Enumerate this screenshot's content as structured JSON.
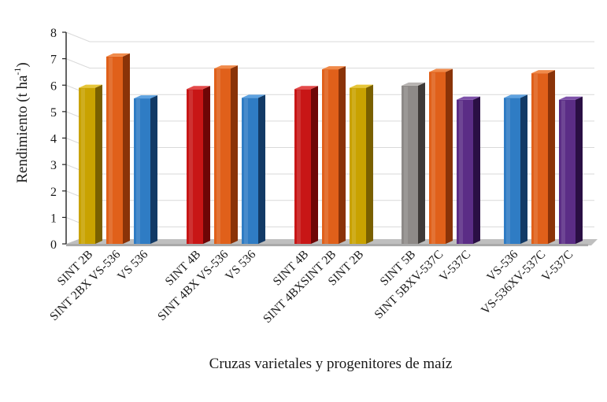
{
  "chart_data": {
    "type": "bar",
    "style": "3d-clustered-bar",
    "title": "",
    "xlabel": "Cruzas varietales y progenitores de maíz",
    "ylabel_main": "Rendimiento (t ha",
    "ylabel_sup": "-1",
    "ylabel_end": ")",
    "ylim": [
      0,
      8
    ],
    "yticks": [
      "0",
      "1",
      "2",
      "3",
      "4",
      "5",
      "6",
      "7",
      "8"
    ],
    "grid": true,
    "groups": [
      {
        "bars": [
          {
            "label": "SINT 2B",
            "value": 5.9,
            "color": "gold"
          },
          {
            "label": "SINT 2BX VS-536",
            "value": 7.08,
            "color": "orange"
          },
          {
            "label": "VS 536",
            "value": 5.5,
            "color": "blue"
          }
        ]
      },
      {
        "bars": [
          {
            "label": "SINT 4B",
            "value": 5.85,
            "color": "red"
          },
          {
            "label": "SINT 4BX VS-536",
            "value": 6.63,
            "color": "orange"
          },
          {
            "label": "VS 536",
            "value": 5.52,
            "color": "blue"
          }
        ]
      },
      {
        "bars": [
          {
            "label": "SINT 4B",
            "value": 5.85,
            "color": "red"
          },
          {
            "label": "SINT 4BXSINT 2B",
            "value": 6.6,
            "color": "orange"
          },
          {
            "label": "SINT 2B",
            "value": 5.9,
            "color": "gold"
          }
        ]
      },
      {
        "bars": [
          {
            "label": "SINT 5B",
            "value": 5.98,
            "color": "gray"
          },
          {
            "label": "SINT 5BXV-537C",
            "value": 6.5,
            "color": "orange"
          },
          {
            "label": "V-537C",
            "value": 5.45,
            "color": "purple"
          }
        ]
      },
      {
        "bars": [
          {
            "label": "VS-536",
            "value": 5.52,
            "color": "blue"
          },
          {
            "label": "VS-536XV-537C",
            "value": 6.45,
            "color": "orange"
          },
          {
            "label": "V-537C",
            "value": 5.45,
            "color": "purple"
          }
        ]
      }
    ],
    "palette": {
      "gold": {
        "front": "#c9a200",
        "side": "#7a6000",
        "top": "#e6c63a"
      },
      "orange": {
        "front": "#e0601a",
        "side": "#8a3308",
        "top": "#f08a4a"
      },
      "blue": {
        "front": "#2f7cc4",
        "side": "#123a66",
        "top": "#5ea2e0"
      },
      "red": {
        "front": "#c81616",
        "side": "#6e0606",
        "top": "#e44a4a"
      },
      "gray": {
        "front": "#8e8a88",
        "side": "#3e3a38",
        "top": "#b8b4b2"
      },
      "purple": {
        "front": "#5b2d86",
        "side": "#2a0f44",
        "top": "#7e52aa"
      },
      "floor": "#bfbfbf",
      "grid": "#d9d9d9"
    }
  }
}
